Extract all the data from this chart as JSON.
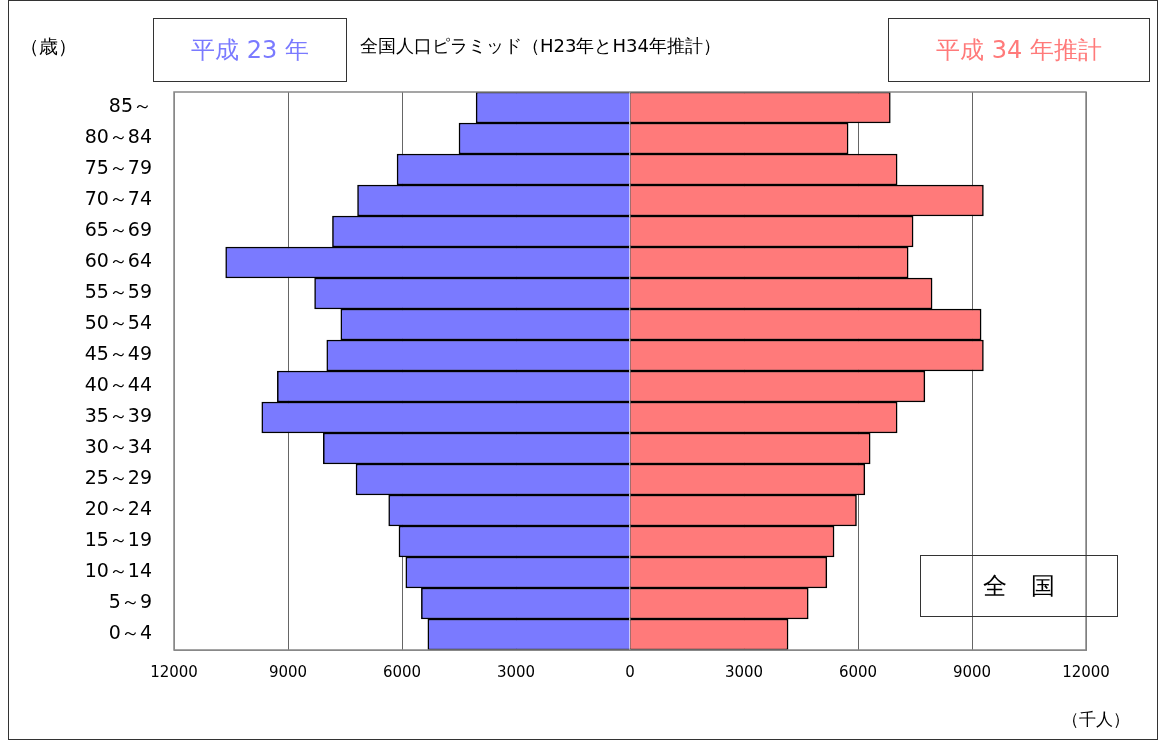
{
  "chart_data": {
    "type": "bar",
    "orientation": "horizontal",
    "title": "全国人口ピラミッド（H23年とH34年推計）",
    "ylabel": "（歳）",
    "xlabel": "（千人）",
    "annotations": [
      "全　国"
    ],
    "categories": [
      "85～",
      "80～84",
      "75～79",
      "70～74",
      "65～69",
      "60～64",
      "55～59",
      "50～54",
      "45～49",
      "40～44",
      "35～39",
      "30～34",
      "25～29",
      "20～24",
      "15～19",
      "10～14",
      "5～9",
      "0～4"
    ],
    "series": [
      {
        "name": "平成 23 年",
        "color": "#7a7aff",
        "values": [
          -4050,
          -4500,
          -6130,
          -7170,
          -7830,
          -10640,
          -8300,
          -7610,
          -7980,
          -9280,
          -9690,
          -8070,
          -7210,
          -6350,
          -6080,
          -5900,
          -5490,
          -5320
        ]
      },
      {
        "name": "平成 34 年推計",
        "color": "#ff7a7a",
        "values": [
          6850,
          5740,
          7030,
          9300,
          7450,
          7320,
          7950,
          9240,
          9300,
          7760,
          7030,
          6320,
          6180,
          5960,
          5370,
          5180,
          4690,
          4160
        ]
      }
    ],
    "xlim": [
      -12000,
      12000
    ],
    "xticks": [
      {
        "value": -12000,
        "label": "12000"
      },
      {
        "value": -9000,
        "label": "9000"
      },
      {
        "value": -6000,
        "label": "6000"
      },
      {
        "value": -3000,
        "label": "3000"
      },
      0,
      3000,
      6000,
      9000,
      12000
    ],
    "grid": "x",
    "legend": false,
    "stacked": true
  }
}
